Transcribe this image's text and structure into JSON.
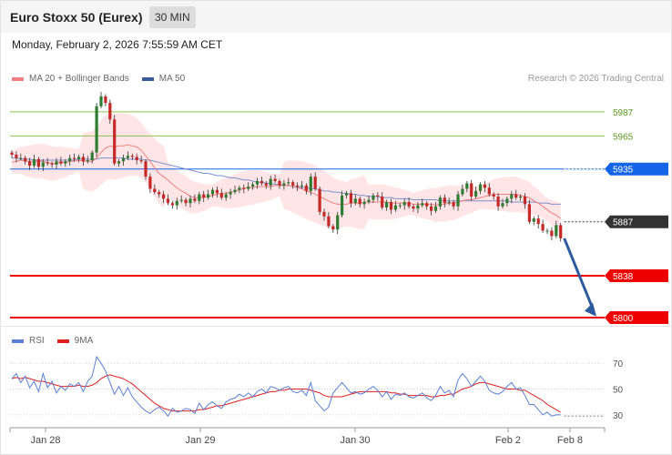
{
  "header": {
    "title": "Euro Stoxx 50 (Eurex)",
    "timeframe": "30 MIN",
    "datetime": "Monday, February 2, 2026 7:55:59 AM CET"
  },
  "legend": {
    "main": [
      {
        "label": "MA 20 + Bollinger Bands",
        "color": "#f08080"
      },
      {
        "label": "MA 50",
        "color": "#3a5a9a"
      }
    ],
    "rsi": [
      {
        "label": "RSI",
        "color": "#5b7fd6"
      },
      {
        "label": "9MA",
        "color": "#e02020"
      }
    ]
  },
  "copyright": "Research © 2026 Trading Central",
  "colors": {
    "up_candle": "#2e7d32",
    "down_candle": "#c62828",
    "bollinger_fill": "#ffe0e0",
    "ma20": "#f08080",
    "ma50": "#7a8fd0",
    "green_level": "#8bc34a",
    "blue_level": "#1565e8",
    "red_level": "#ee0000",
    "current_price": "#333333",
    "arrow": "#2d5a9e"
  },
  "chart_data": [
    {
      "type": "candlestick",
      "x_labels": [
        "Jan 28",
        "Jan 29",
        "Jan 30",
        "Feb 2",
        "Feb 8"
      ],
      "y_range": [
        5795,
        6010
      ],
      "levels": [
        {
          "value": 5987,
          "label": "5987",
          "kind": "resistance"
        },
        {
          "value": 5965,
          "label": "5965",
          "kind": "resistance"
        },
        {
          "value": 5935,
          "label": "5935",
          "kind": "pivot"
        },
        {
          "value": 5887,
          "label": "5887",
          "kind": "current"
        },
        {
          "value": 5838,
          "label": "5838",
          "kind": "target"
        },
        {
          "value": 5800,
          "label": "5800",
          "kind": "target"
        }
      ],
      "close": [
        5948,
        5945,
        5945,
        5942,
        5938,
        5944,
        5937,
        5941,
        5940,
        5939,
        5942,
        5940,
        5942,
        5945,
        5944,
        5946,
        5942,
        5943,
        5950,
        5992,
        6001,
        5995,
        5980,
        5940,
        5942,
        5945,
        5947,
        5946,
        5943,
        5942,
        5928,
        5917,
        5914,
        5912,
        5908,
        5904,
        5902,
        5906,
        5907,
        5904,
        5908,
        5906,
        5912,
        5909,
        5912,
        5916,
        5913,
        5909,
        5912,
        5914,
        5916,
        5918,
        5917,
        5919,
        5921,
        5924,
        5922,
        5920,
        5926,
        5924,
        5920,
        5922,
        5923,
        5920,
        5919,
        5920,
        5915,
        5928,
        5917,
        5896,
        5892,
        5883,
        5880,
        5893,
        5911,
        5913,
        5904,
        5908,
        5903,
        5905,
        5907,
        5911,
        5910,
        5900,
        5905,
        5898,
        5902,
        5902,
        5905,
        5901,
        5899,
        5902,
        5904,
        5901,
        5897,
        5901,
        5909,
        5904,
        5905,
        5901,
        5912,
        5917,
        5922,
        5910,
        5915,
        5921,
        5918,
        5912,
        5910,
        5901,
        5904,
        5908,
        5912,
        5909,
        5910,
        5903,
        5887,
        5890,
        5885,
        5879,
        5879,
        5874,
        5884,
        5872
      ],
      "ma20": [
        5941,
        5942,
        5943,
        5942,
        5942,
        5942,
        5942,
        5942,
        5941,
        5940,
        5940,
        5941,
        5941,
        5942,
        5942,
        5943,
        5942,
        5942,
        5942,
        5945,
        5950,
        5954,
        5956,
        5955,
        5956,
        5956,
        5957,
        5956,
        5955,
        5952,
        5947,
        5942,
        5936,
        5931,
        5928,
        5925,
        5921,
        5918,
        5915,
        5913,
        5910,
        5909,
        5909,
        5909,
        5910,
        5911,
        5912,
        5913,
        5913,
        5914,
        5915,
        5916,
        5917,
        5918,
        5918,
        5919,
        5919,
        5919,
        5919,
        5920,
        5920,
        5920,
        5920,
        5919,
        5918,
        5917,
        5915,
        5914,
        5912,
        5910,
        5908,
        5906,
        5904,
        5903,
        5903,
        5903,
        5904,
        5904,
        5904,
        5905,
        5905,
        5905,
        5905,
        5905,
        5905,
        5904,
        5904,
        5904,
        5904,
        5904,
        5903,
        5903,
        5903,
        5903,
        5903,
        5902,
        5903,
        5903,
        5904,
        5904,
        5905,
        5906,
        5907,
        5907,
        5908,
        5909,
        5910,
        5911,
        5912,
        5912,
        5912,
        5912,
        5912,
        5912,
        5911,
        5910,
        5909,
        5906,
        5904,
        5901,
        5898,
        5895,
        5893,
        5890
      ],
      "ma50": [
        5945,
        5945,
        5944,
        5944,
        5944,
        5943,
        5943,
        5943,
        5943,
        5943,
        5943,
        5943,
        5943,
        5943,
        5943,
        5944,
        5944,
        5944,
        5944,
        5944,
        5945,
        5945,
        5945,
        5945,
        5945,
        5945,
        5944,
        5944,
        5944,
        5944,
        5943,
        5943,
        5942,
        5941,
        5940,
        5939,
        5938,
        5937,
        5936,
        5935,
        5934,
        5933,
        5932,
        5931,
        5931,
        5930,
        5929,
        5929,
        5928,
        5927,
        5927,
        5926,
        5925,
        5925,
        5924,
        5923,
        5923,
        5922,
        5922,
        5921,
        5921,
        5920,
        5920,
        5919,
        5919,
        5918,
        5918,
        5917,
        5917,
        5916,
        5915,
        5915,
        5914,
        5914,
        5913,
        5913,
        5912,
        5912,
        5911,
        5911,
        5910,
        5910,
        5910,
        5909,
        5909,
        5909,
        5908,
        5908,
        5908,
        5908,
        5907,
        5907,
        5907,
        5907,
        5907,
        5907,
        5906,
        5906,
        5906,
        5906,
        5906,
        5906,
        5906,
        5906,
        5906,
        5906,
        5906,
        5906,
        5906,
        5906,
        5906,
        5906,
        5905,
        5905,
        5905,
        5905,
        5905,
        5905,
        5904,
        5904,
        5904,
        5903,
        5903,
        5903
      ]
    },
    {
      "type": "line",
      "x_labels": [
        "Jan 28",
        "Jan 29",
        "Jan 30",
        "Feb 2",
        "Feb 8"
      ],
      "y_range": [
        20,
        80
      ],
      "y_ticks": [
        30,
        50,
        70
      ],
      "series": [
        {
          "name": "RSI",
          "values": [
            58,
            62,
            55,
            60,
            51,
            56,
            48,
            62,
            51,
            56,
            47,
            52,
            49,
            54,
            52,
            55,
            48,
            56,
            60,
            75,
            70,
            64,
            55,
            46,
            52,
            45,
            51,
            44,
            40,
            36,
            33,
            31,
            34,
            36,
            33,
            29,
            35,
            32,
            33,
            35,
            34,
            31,
            39,
            34,
            38,
            40,
            37,
            35,
            40,
            42,
            43,
            46,
            44,
            47,
            44,
            48,
            50,
            47,
            52,
            51,
            49,
            51,
            52,
            48,
            47,
            49,
            45,
            55,
            41,
            37,
            33,
            36,
            47,
            51,
            55,
            51,
            47,
            48,
            46,
            47,
            50,
            52,
            49,
            44,
            48,
            42,
            46,
            45,
            47,
            44,
            43,
            45,
            47,
            43,
            41,
            45,
            52,
            47,
            49,
            44,
            57,
            62,
            58,
            52,
            56,
            60,
            56,
            49,
            47,
            46,
            48,
            52,
            55,
            50,
            51,
            45,
            38,
            38,
            34,
            30,
            32,
            29,
            30,
            30
          ]
        },
        {
          "name": "9MA",
          "values": [
            58,
            59,
            58,
            59,
            58,
            57,
            56,
            56,
            55,
            54,
            53,
            52,
            52,
            52,
            52,
            53,
            52,
            52,
            53,
            55,
            58,
            60,
            61,
            60,
            59,
            58,
            56,
            54,
            51,
            48,
            45,
            42,
            39,
            37,
            35,
            34,
            33,
            33,
            33,
            33,
            33,
            33,
            34,
            34,
            35,
            36,
            37,
            37,
            38,
            39,
            40,
            41,
            42,
            43,
            44,
            45,
            46,
            47,
            48,
            48,
            49,
            49,
            50,
            50,
            50,
            50,
            50,
            49,
            48,
            47,
            45,
            44,
            44,
            44,
            44,
            45,
            46,
            47,
            48,
            48,
            48,
            48,
            48,
            48,
            48,
            47,
            47,
            46,
            46,
            45,
            45,
            45,
            45,
            45,
            44,
            44,
            45,
            45,
            46,
            46,
            48,
            50,
            51,
            52,
            54,
            55,
            55,
            54,
            53,
            52,
            51,
            50,
            50,
            50,
            49,
            49,
            47,
            45,
            43,
            41,
            38,
            36,
            34,
            32
          ]
        }
      ]
    }
  ]
}
